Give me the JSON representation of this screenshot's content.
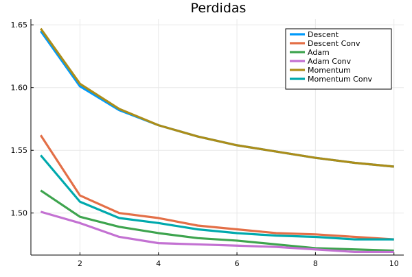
{
  "chart_data": {
    "type": "line",
    "title": "Perdidas",
    "xlabel": "",
    "ylabel": "",
    "xlim": [
      0.75,
      10.25
    ],
    "ylim": [
      1.4665,
      1.6545
    ],
    "x_ticks": [
      2,
      4,
      6,
      8,
      10
    ],
    "x_tick_labels": [
      "2",
      "4",
      "6",
      "8",
      "10"
    ],
    "y_ticks": [
      1.5,
      1.55,
      1.6,
      1.65
    ],
    "y_tick_labels": [
      "1.50",
      "1.55",
      "1.60",
      "1.65"
    ],
    "grid": true,
    "legend_position": "top-right",
    "x": [
      1,
      2,
      3,
      4,
      5,
      6,
      7,
      8,
      9,
      10
    ],
    "series": [
      {
        "name": "Descent",
        "color": "#009AFA",
        "values": [
          1.645,
          1.601,
          1.582,
          1.57,
          1.561,
          1.554,
          1.549,
          1.544,
          1.54,
          1.537
        ]
      },
      {
        "name": "Descent Conv",
        "color": "#E36F47",
        "values": [
          1.562,
          1.514,
          1.5,
          1.496,
          1.49,
          1.487,
          1.484,
          1.483,
          1.481,
          1.479
        ]
      },
      {
        "name": "Adam",
        "color": "#3EA44E",
        "values": [
          1.518,
          1.497,
          1.489,
          1.484,
          1.48,
          1.478,
          1.475,
          1.472,
          1.471,
          1.47
        ]
      },
      {
        "name": "Adam Conv",
        "color": "#C371D2",
        "values": [
          1.501,
          1.492,
          1.481,
          1.476,
          1.475,
          1.474,
          1.473,
          1.471,
          1.469,
          1.469
        ]
      },
      {
        "name": "Momentum",
        "color": "#AC8D19",
        "values": [
          1.647,
          1.603,
          1.583,
          1.57,
          1.561,
          1.554,
          1.549,
          1.544,
          1.54,
          1.537
        ]
      },
      {
        "name": "Momentum Conv",
        "color": "#00A9AD",
        "values": [
          1.546,
          1.509,
          1.496,
          1.492,
          1.487,
          1.484,
          1.482,
          1.481,
          1.479,
          1.479
        ]
      }
    ]
  }
}
